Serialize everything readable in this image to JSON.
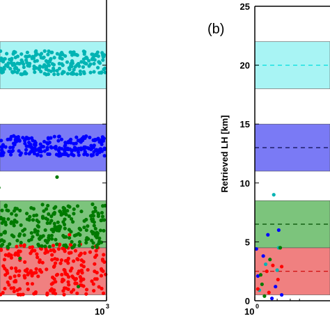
{
  "chart_data": [
    {
      "type": "scatter",
      "panel": "a",
      "xscale": "log",
      "xlim": [
        1,
        1000
      ],
      "ylim": [
        0,
        25
      ],
      "x_tick_labels_visible": [
        "10",
        "3"
      ],
      "bands": [
        {
          "ymin": 0.5,
          "ymax": 4.5,
          "color": "#f08080",
          "center": 2.5
        },
        {
          "ymin": 4.5,
          "ymax": 8.5,
          "color": "#7cc47c",
          "center": 6.5
        },
        {
          "ymin": 11,
          "ymax": 15,
          "color": "#7a7af5",
          "center": 13
        },
        {
          "ymin": 18,
          "ymax": 22,
          "color": "#a8f4f4",
          "center": 20
        }
      ],
      "series": [
        {
          "color": "#ff0000",
          "y_range": [
            0.5,
            4.8
          ],
          "extra": [
            [
              20,
              5.3
            ],
            [
              120,
              4.4
            ],
            [
              300,
              5.6
            ]
          ]
        },
        {
          "color": "#007a00",
          "y_range": [
            4.5,
            8.2
          ],
          "extra": [
            [
              30,
              9.6
            ],
            [
              200,
              10.5
            ],
            [
              60,
              3.6
            ],
            [
              400,
              1.2
            ]
          ]
        },
        {
          "color": "#0000ff",
          "y_range": [
            12.3,
            14.0
          ],
          "extra": []
        },
        {
          "color": "#00b3b3",
          "y_range": [
            19.2,
            21.2
          ],
          "extra": []
        }
      ]
    },
    {
      "type": "scatter",
      "panel": "b",
      "panel_label": "(b)",
      "xscale": "log",
      "xlim": [
        1,
        1000
      ],
      "ylim": [
        0,
        25
      ],
      "ylabel": "Retrieved LH [km]",
      "y_ticks": [
        "0",
        "5",
        "10",
        "15",
        "20",
        "25"
      ],
      "x_tick_label_visible": "10",
      "x_tick_exponent": "0",
      "bands": [
        {
          "ymin": 0.5,
          "ymax": 4.5,
          "color": "#f08080",
          "center": 2.5,
          "center_color": "#cc0000"
        },
        {
          "ymin": 4.5,
          "ymax": 8.5,
          "color": "#7cc47c",
          "center": 6.5,
          "center_color": "#004d00"
        },
        {
          "ymin": 11,
          "ymax": 15,
          "color": "#7a7af5",
          "center": 13,
          "center_color": "#00003a"
        },
        {
          "ymin": 18,
          "ymax": 22,
          "color": "#a8f4f4",
          "center": 20,
          "center_color": "#00e0e0"
        }
      ],
      "series": [
        {
          "color": "#00b3b3",
          "points": [
            [
              1.8,
              9
            ],
            [
              2.1,
              4.5
            ],
            [
              1.15,
              0.9
            ],
            [
              2.0,
              2.6
            ],
            [
              1.4,
              3.1
            ]
          ]
        },
        {
          "color": "#0000ff",
          "points": [
            [
              1.05,
              4.4
            ],
            [
              1.1,
              2.1
            ],
            [
              1.3,
              3.8
            ],
            [
              1.5,
              5.6
            ],
            [
              1.7,
              0.2
            ],
            [
              2.1,
              6.0
            ],
            [
              2.3,
              0.5
            ],
            [
              1.9,
              1.2
            ]
          ]
        },
        {
          "color": "#007a00",
          "points": [
            [
              1.2,
              2.2
            ],
            [
              1.35,
              0.4
            ],
            [
              1.6,
              3.5
            ],
            [
              2.2,
              4.5
            ],
            [
              1.25,
              1.4
            ]
          ]
        },
        {
          "color": "#ff0000",
          "points": [
            [
              1.1,
              1.0
            ],
            [
              1.45,
              2.5
            ],
            [
              1.75,
              3.0
            ],
            [
              2.05,
              1.8
            ],
            [
              2.3,
              2.9
            ],
            [
              1.55,
              0.7
            ]
          ]
        }
      ]
    }
  ]
}
